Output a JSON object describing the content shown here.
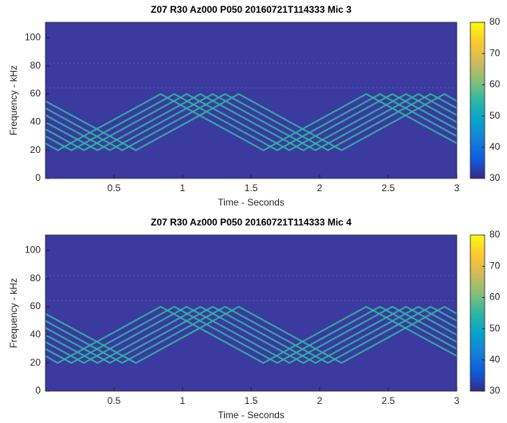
{
  "chart_data": [
    {
      "type": "spectrogram",
      "title": "Z07 R30 Az000 P050 20160721T114333 Mic 3",
      "x_label": "Time - Seconds",
      "y_label": "Frequency - kHz",
      "background": "#3b3a9e",
      "xlim": [
        0,
        3
      ],
      "xticks": [
        0.5,
        1,
        1.5,
        2,
        2.5,
        3
      ],
      "ylim": [
        0,
        111
      ],
      "yticks": [
        0,
        20,
        40,
        60,
        80,
        100
      ],
      "clim": [
        30,
        80
      ],
      "cticks": [
        30,
        40,
        50,
        60,
        70,
        80
      ],
      "series": [
        {
          "color": "#2fb8a2",
          "x": [
            0,
            0.66,
            1.41,
            2.16,
            2.91,
            3
          ],
          "values": [
            55,
            20,
            60,
            20,
            60,
            55
          ]
        },
        {
          "color": "#2fb8a2",
          "x": [
            0,
            0.56,
            1.31,
            2.06,
            2.81,
            3
          ],
          "values": [
            50,
            20,
            60,
            20,
            60,
            50
          ]
        },
        {
          "color": "#2fb8a2",
          "x": [
            0,
            0.47,
            1.22,
            1.97,
            2.72,
            3
          ],
          "values": [
            45,
            20,
            60,
            20,
            60,
            45
          ]
        },
        {
          "color": "#2fb8a2",
          "x": [
            0,
            0.38,
            1.13,
            1.88,
            2.63,
            3
          ],
          "values": [
            40,
            20,
            60,
            20,
            60,
            40
          ]
        },
        {
          "color": "#2fb8a2",
          "x": [
            0,
            0.28,
            1.03,
            1.78,
            2.53,
            3
          ],
          "values": [
            35,
            20,
            60,
            20,
            60,
            35
          ]
        },
        {
          "color": "#2fb8a2",
          "x": [
            0,
            0.19,
            0.94,
            1.69,
            2.44,
            3
          ],
          "values": [
            30,
            20,
            60,
            20,
            60,
            30
          ]
        },
        {
          "color": "#2fb8a2",
          "x": [
            0,
            0.09,
            0.84,
            1.59,
            2.34,
            3
          ],
          "values": [
            25,
            20,
            60,
            20,
            60,
            25
          ]
        }
      ]
    },
    {
      "type": "spectrogram",
      "title": "Z07 R30 Az000 P050 20160721T114333 Mic 4",
      "x_label": "Time - Seconds",
      "y_label": "Frequency - kHz",
      "background": "#3b3a9e",
      "xlim": [
        0,
        3
      ],
      "xticks": [
        0.5,
        1,
        1.5,
        2,
        2.5,
        3
      ],
      "ylim": [
        0,
        111
      ],
      "yticks": [
        0,
        20,
        40,
        60,
        80,
        100
      ],
      "clim": [
        30,
        80
      ],
      "cticks": [
        30,
        40,
        50,
        60,
        70,
        80
      ],
      "series": [
        {
          "color": "#2fb8a2",
          "x": [
            0,
            0.66,
            1.41,
            2.16,
            2.91,
            3
          ],
          "values": [
            55,
            20,
            60,
            20,
            60,
            55
          ]
        },
        {
          "color": "#2fb8a2",
          "x": [
            0,
            0.56,
            1.31,
            2.06,
            2.81,
            3
          ],
          "values": [
            50,
            20,
            60,
            20,
            60,
            50
          ]
        },
        {
          "color": "#2fb8a2",
          "x": [
            0,
            0.47,
            1.22,
            1.97,
            2.72,
            3
          ],
          "values": [
            45,
            20,
            60,
            20,
            60,
            45
          ]
        },
        {
          "color": "#2fb8a2",
          "x": [
            0,
            0.38,
            1.13,
            1.88,
            2.63,
            3
          ],
          "values": [
            40,
            20,
            60,
            20,
            60,
            40
          ]
        },
        {
          "color": "#2fb8a2",
          "x": [
            0,
            0.28,
            1.03,
            1.78,
            2.53,
            3
          ],
          "values": [
            35,
            20,
            60,
            20,
            60,
            35
          ]
        },
        {
          "color": "#2fb8a2",
          "x": [
            0,
            0.19,
            0.94,
            1.69,
            2.44,
            3
          ],
          "values": [
            30,
            20,
            60,
            20,
            60,
            30
          ]
        },
        {
          "color": "#2fb8a2",
          "x": [
            0,
            0.09,
            0.84,
            1.59,
            2.34,
            3
          ],
          "values": [
            25,
            20,
            60,
            20,
            60,
            25
          ]
        }
      ]
    }
  ]
}
